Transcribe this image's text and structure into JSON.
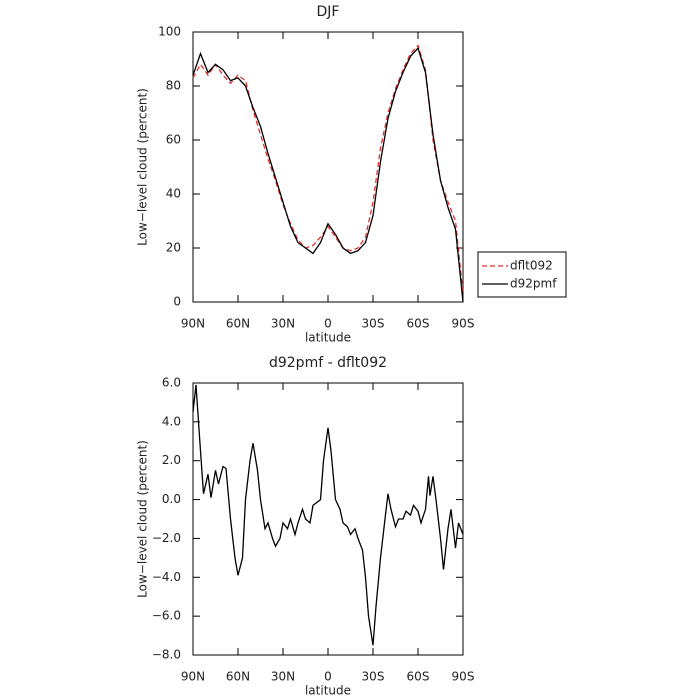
{
  "chart_data": [
    {
      "type": "line",
      "title": "DJF",
      "xlabel": "latitude",
      "ylabel": "Low−level cloud (percent)",
      "x": [
        90,
        85,
        80,
        75,
        70,
        65,
        60,
        55,
        50,
        45,
        40,
        35,
        30,
        25,
        20,
        15,
        10,
        5,
        0,
        -5,
        -10,
        -15,
        -20,
        -25,
        -30,
        -35,
        -40,
        -45,
        -50,
        -55,
        -60,
        -65,
        -70,
        -75,
        -80,
        -85,
        -90
      ],
      "series": [
        {
          "name": "dflt092",
          "color": "#e03030",
          "dash": true,
          "values": [
            83,
            88,
            84,
            88,
            84,
            81,
            84,
            82,
            71,
            62,
            53,
            45,
            36,
            29,
            23,
            20,
            21,
            24,
            28,
            24,
            20,
            19,
            20,
            24,
            37,
            57,
            70,
            79,
            86,
            92,
            95,
            86,
            60,
            45,
            37,
            30,
            3
          ]
        },
        {
          "name": "d92pmf",
          "color": "#000000",
          "dash": false,
          "values": [
            84,
            92,
            85,
            88,
            86,
            82,
            83,
            80,
            72,
            65,
            55,
            46,
            37,
            28,
            22,
            20,
            18,
            22,
            29,
            25,
            20,
            18,
            19,
            22,
            32,
            52,
            68,
            78,
            85,
            91,
            94,
            85,
            62,
            45,
            35,
            27,
            0
          ]
        }
      ],
      "xlim": [
        90,
        -90
      ],
      "xticks": [
        {
          "value": 90,
          "label": "90N"
        },
        {
          "value": 60,
          "label": "60N"
        },
        {
          "value": 30,
          "label": "30N"
        },
        0,
        {
          "value": -30,
          "label": "30S"
        },
        {
          "value": -60,
          "label": "60S"
        },
        {
          "value": -90,
          "label": "90S"
        }
      ],
      "ylim": [
        0,
        100
      ],
      "yticks": [
        0,
        20,
        40,
        60,
        80,
        100
      ],
      "legend": "right"
    },
    {
      "type": "line",
      "title": "d92pmf - dflt092",
      "xlabel": "latitude",
      "ylabel": "Low−level cloud (percent)",
      "x": [
        90,
        88,
        85,
        83,
        80,
        78,
        75,
        73,
        70,
        68,
        65,
        62,
        60,
        57,
        55,
        52,
        50,
        47,
        45,
        42,
        40,
        37,
        35,
        32,
        30,
        27,
        25,
        22,
        20,
        17,
        15,
        12,
        10,
        5,
        3,
        0,
        -2,
        -5,
        -8,
        -10,
        -13,
        -15,
        -18,
        -20,
        -23,
        -25,
        -27,
        -30,
        -32,
        -35,
        -38,
        -40,
        -42,
        -45,
        -47,
        -50,
        -52,
        -55,
        -57,
        -60,
        -62,
        -65,
        -67,
        -68,
        -70,
        -72,
        -75,
        -77,
        -80,
        -82,
        -85,
        -87,
        -90
      ],
      "series": [
        {
          "name": "d92pmf - dflt092",
          "color": "#000000",
          "dash": false,
          "values": [
            4.5,
            5.9,
            2.5,
            0.3,
            1.3,
            0.1,
            1.5,
            0.8,
            1.7,
            1.6,
            -1,
            -3,
            -3.9,
            -3,
            0,
            2,
            2.9,
            1.5,
            0,
            -1.5,
            -1.2,
            -2,
            -2.4,
            -2,
            -1.2,
            -1.5,
            -1,
            -1.8,
            -1.2,
            -0.5,
            -1,
            -1.2,
            -0.3,
            0,
            2,
            3.7,
            2.5,
            0,
            -0.5,
            -1.2,
            -1.4,
            -1.8,
            -1.5,
            -2,
            -2.6,
            -4,
            -6,
            -7.5,
            -5.5,
            -3,
            -1,
            0.3,
            -0.5,
            -1.4,
            -1,
            -1,
            -0.6,
            -0.8,
            -0.3,
            -0.6,
            -1.2,
            -0.5,
            1.2,
            0.2,
            1.2,
            0,
            -2,
            -3.6,
            -1.5,
            -0.5,
            -2.5,
            -1.2,
            -1.8
          ]
        }
      ],
      "xlim": [
        90,
        -90
      ],
      "xticks": [
        {
          "value": 90,
          "label": "90N"
        },
        {
          "value": 60,
          "label": "60N"
        },
        {
          "value": 30,
          "label": "30N"
        },
        0,
        {
          "value": -30,
          "label": "30S"
        },
        {
          "value": -60,
          "label": "60S"
        },
        {
          "value": -90,
          "label": "90S"
        }
      ],
      "ylim": [
        -8,
        6
      ],
      "yticks": [
        {
          "value": -8,
          "label": "−8.0"
        },
        {
          "value": -6,
          "label": "−6.0"
        },
        {
          "value": -4,
          "label": "−4.0"
        },
        {
          "value": -2,
          "label": "−2.0"
        },
        {
          "value": 0,
          "label": "0.0"
        },
        {
          "value": 2,
          "label": "2.0"
        },
        {
          "value": 4,
          "label": "4.0"
        },
        {
          "value": 6,
          "label": "6.0"
        }
      ]
    }
  ]
}
